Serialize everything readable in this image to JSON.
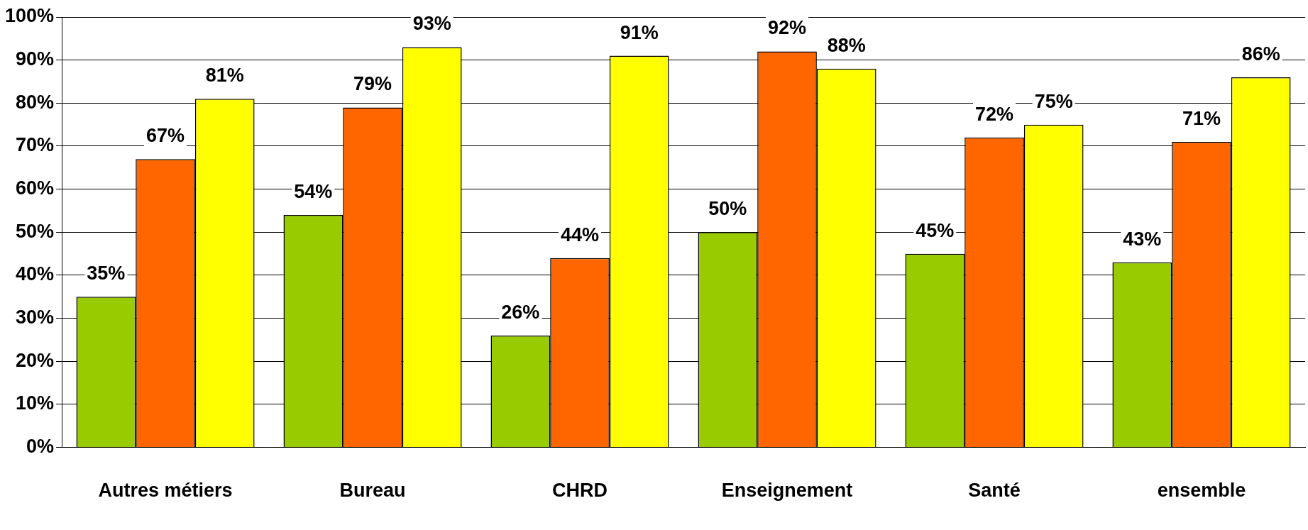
{
  "chart_data": {
    "type": "bar",
    "categories": [
      "Autres métiers",
      "Bureau",
      "CHRD",
      "Enseignement",
      "Santé",
      "ensemble"
    ],
    "series": [
      {
        "color": "#99cc00",
        "values": [
          35,
          54,
          26,
          50,
          45,
          43
        ],
        "value_labels": [
          "35%",
          "54%",
          "26%",
          "50%",
          "45%",
          "43%"
        ]
      },
      {
        "color": "#ff6600",
        "values": [
          67,
          79,
          44,
          92,
          72,
          71
        ],
        "value_labels": [
          "67%",
          "79%",
          "44%",
          "92%",
          "72%",
          "71%"
        ]
      },
      {
        "color": "#ffff00",
        "values": [
          81,
          93,
          91,
          88,
          75,
          86
        ],
        "value_labels": [
          "81%",
          "93%",
          "91%",
          "88%",
          "75%",
          "86%"
        ]
      }
    ],
    "ylim": [
      0,
      100
    ],
    "yticks": [
      {
        "value": 0,
        "label": "0%"
      },
      {
        "value": 10,
        "label": "10%"
      },
      {
        "value": 20,
        "label": "20%"
      },
      {
        "value": 30,
        "label": "30%"
      },
      {
        "value": 40,
        "label": "40%"
      },
      {
        "value": 50,
        "label": "50%"
      },
      {
        "value": 60,
        "label": "60%"
      },
      {
        "value": 70,
        "label": "70%"
      },
      {
        "value": 80,
        "label": "80%"
      },
      {
        "value": 90,
        "label": "90%"
      },
      {
        "value": 100,
        "label": "100%"
      }
    ],
    "grid": "y",
    "legend": false
  }
}
